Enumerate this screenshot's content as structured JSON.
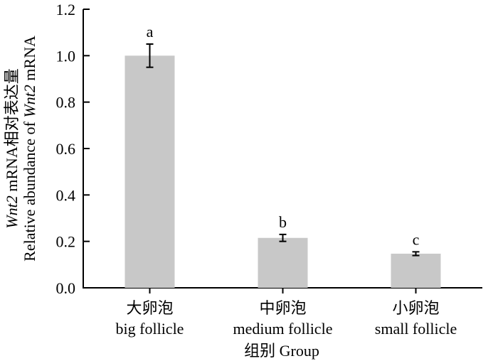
{
  "chart_data": {
    "type": "bar",
    "categories": [
      {
        "zh": "大卵泡",
        "en": "big follicle"
      },
      {
        "zh": "中卵泡",
        "en": "medium follicle"
      },
      {
        "zh": "小卵泡",
        "en": "small follicle"
      }
    ],
    "values": [
      1.0,
      0.215,
      0.147
    ],
    "errors": [
      0.05,
      0.015,
      0.008
    ],
    "significance": [
      "a",
      "b",
      "c"
    ],
    "bar_color": "#c8c8c8",
    "ylim": [
      0,
      1.2
    ],
    "yticks": [
      "0.0",
      "0.2",
      "0.4",
      "0.6",
      "0.8",
      "1.0",
      "1.2"
    ],
    "ytick_values": [
      0,
      0.2,
      0.4,
      0.6,
      0.8,
      1.0,
      1.2
    ],
    "ylabel": {
      "line1_italic": "Wnt2",
      "line1_rest": " mRNA相对表达量",
      "line2_prefix": "Relative abundance of ",
      "line2_italic": "Wnt2",
      "line2_suffix": " mRNA"
    },
    "xlabel": "组别 Group",
    "grid": false,
    "legend": "none"
  }
}
